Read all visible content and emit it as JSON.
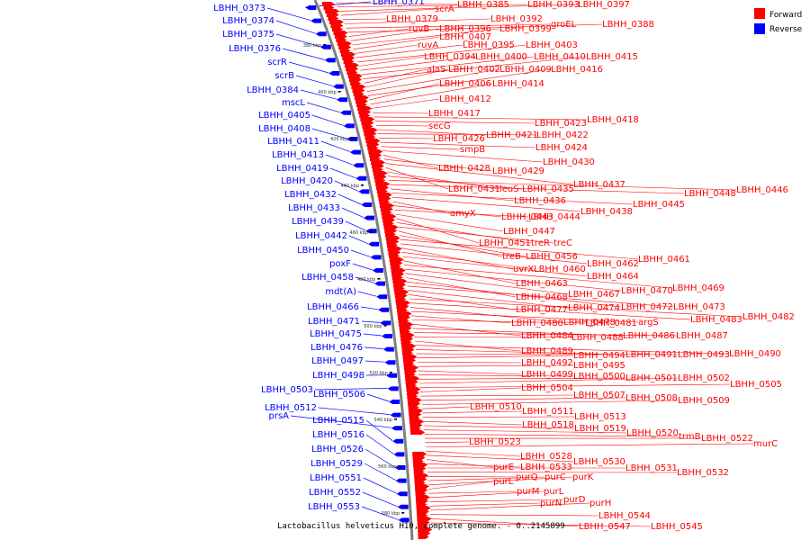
{
  "caption": "Lactobacillus helveticus H10, complete genome. - 0..2145899",
  "legend": [
    {
      "label": "Forward",
      "color": "#ff0000"
    },
    {
      "label": "Reverse",
      "color": "#0000ff"
    }
  ],
  "colors": {
    "forward": "#ff0000",
    "reverse": "#0000ff",
    "backbone": "#808080",
    "lines_forward": "#ff0000",
    "lines_reverse": "#0000ff"
  },
  "ticks": [
    "380 kbp",
    "400 kbp",
    "420 kbp",
    "440 kbp",
    "460 kbp",
    "480 kbp",
    "500 kbp",
    "520 kbp",
    "540 kbp",
    "560 kbp",
    "580 kbp"
  ],
  "reverse_labels": [
    "LBHH_0371",
    "LBHH_0373",
    "LBHH_0374",
    "LBHH_0375",
    "LBHH_0376",
    "scrR",
    "scrB",
    "LBHH_0384",
    "mscL",
    "LBHH_0405",
    "LBHH_0408",
    "LBHH_0411",
    "LBHH_0413",
    "LBHH_0419",
    "LBHH_0420",
    "LBHH_0432",
    "LBHH_0433",
    "LBHH_0439",
    "LBHH_0442",
    "LBHH_0450",
    "poxF",
    "LBHH_0458",
    "mdt(A)",
    "LBHH_0466",
    "LBHH_0471",
    "LBHH_0475",
    "LBHH_0476",
    "LBHH_0497",
    "LBHH_0498",
    "LBHH_0503",
    "LBHH_0506",
    "LBHH_0512",
    "prsA",
    "LBHH_0515",
    "LBHH_0516",
    "LBHH_0526",
    "LBHH_0529",
    "LBHH_0551",
    "LBHH_0552",
    "LBHH_0553"
  ],
  "forward_labels": [
    "LBHH_0385",
    "LBHH_0393",
    "LBHH_0397",
    "scrA",
    "LBHH_0379",
    "LBHH_0392",
    "groEL",
    "LBHH_0388",
    "ruvB",
    "LBHH_0396",
    "LBHH_0399",
    "LBHH_0407",
    "ruvA",
    "LBHH_0395",
    "LBHH_0403",
    "LBHH_0394",
    "LBHH_0400",
    "LBHH_0410",
    "LBHH_0415",
    "alaS",
    "LBHH_0402",
    "LBHH_0409",
    "LBHH_0416",
    "LBHH_0406",
    "LBHH_0414",
    "LBHH_0412",
    "LBHH_0417",
    "LBHH_0418",
    "LBHH_0423",
    "secG",
    "LBHH_0421",
    "LBHH_0422",
    "LBHH_0426",
    "LBHH_0424",
    "smpB",
    "LBHH_0430",
    "LBHH_0428",
    "LBHH_0429",
    "LBHH_0437",
    "LBHH_0431",
    "leuS",
    "LBHH_0435",
    "LBHH_0446",
    "LBHH_0448",
    "LBHH_0436",
    "LBHH_0445",
    "LBHH_0438",
    "amyX",
    "LBHH_0443",
    "LBHH_0444",
    "LBHH_0447",
    "LBHH_0451",
    "treR",
    "treC",
    "treB",
    "LBHH_0456",
    "LBHH_0461",
    "LBHH_0462",
    "uvrX",
    "LBHH_0460",
    "LBHH_0464",
    "LBHH_0463",
    "LBHH_0469",
    "LBHH_0470",
    "LBHH_0467",
    "LBHH_0468",
    "LBHH_0472",
    "LBHH_0473",
    "LBHH_0474",
    "LBHH_0477",
    "LBHH_0482",
    "LBHH_0483",
    "LBHH_0478",
    "argS",
    "LBHH_0480",
    "LBHH_0481",
    "LBHH_0484",
    "LBHH_0486",
    "LBHH_0487",
    "LBHH_0488",
    "LBHH_0489",
    "LBHH_0490",
    "LBHH_0491",
    "LBHH_0493",
    "LBHH_0494",
    "LBHH_0492",
    "LBHH_0495",
    "LBHH_0499",
    "LBHH_0500",
    "LBHH_0501",
    "LBHH_0502",
    "LBHH_0505",
    "LBHH_0504",
    "LBHH_0507",
    "LBHH_0508",
    "LBHH_0509",
    "LBHH_0510",
    "LBHH_0511",
    "LBHH_0513",
    "LBHH_0518",
    "LBHH_0519",
    "LBHH_0520",
    "trmB",
    "LBHH_0522",
    "LBHH_0523",
    "murC",
    "LBHH_0528",
    "LBHH_0530",
    "purE",
    "LBHH_0533",
    "LBHH_0531",
    "LBHH_0532",
    "purQ",
    "purC",
    "purK",
    "purL",
    "purM",
    "purL",
    "purD",
    "purN",
    "purH",
    "LBHH_0544",
    "LBHH_0547",
    "LBHH_0545"
  ]
}
